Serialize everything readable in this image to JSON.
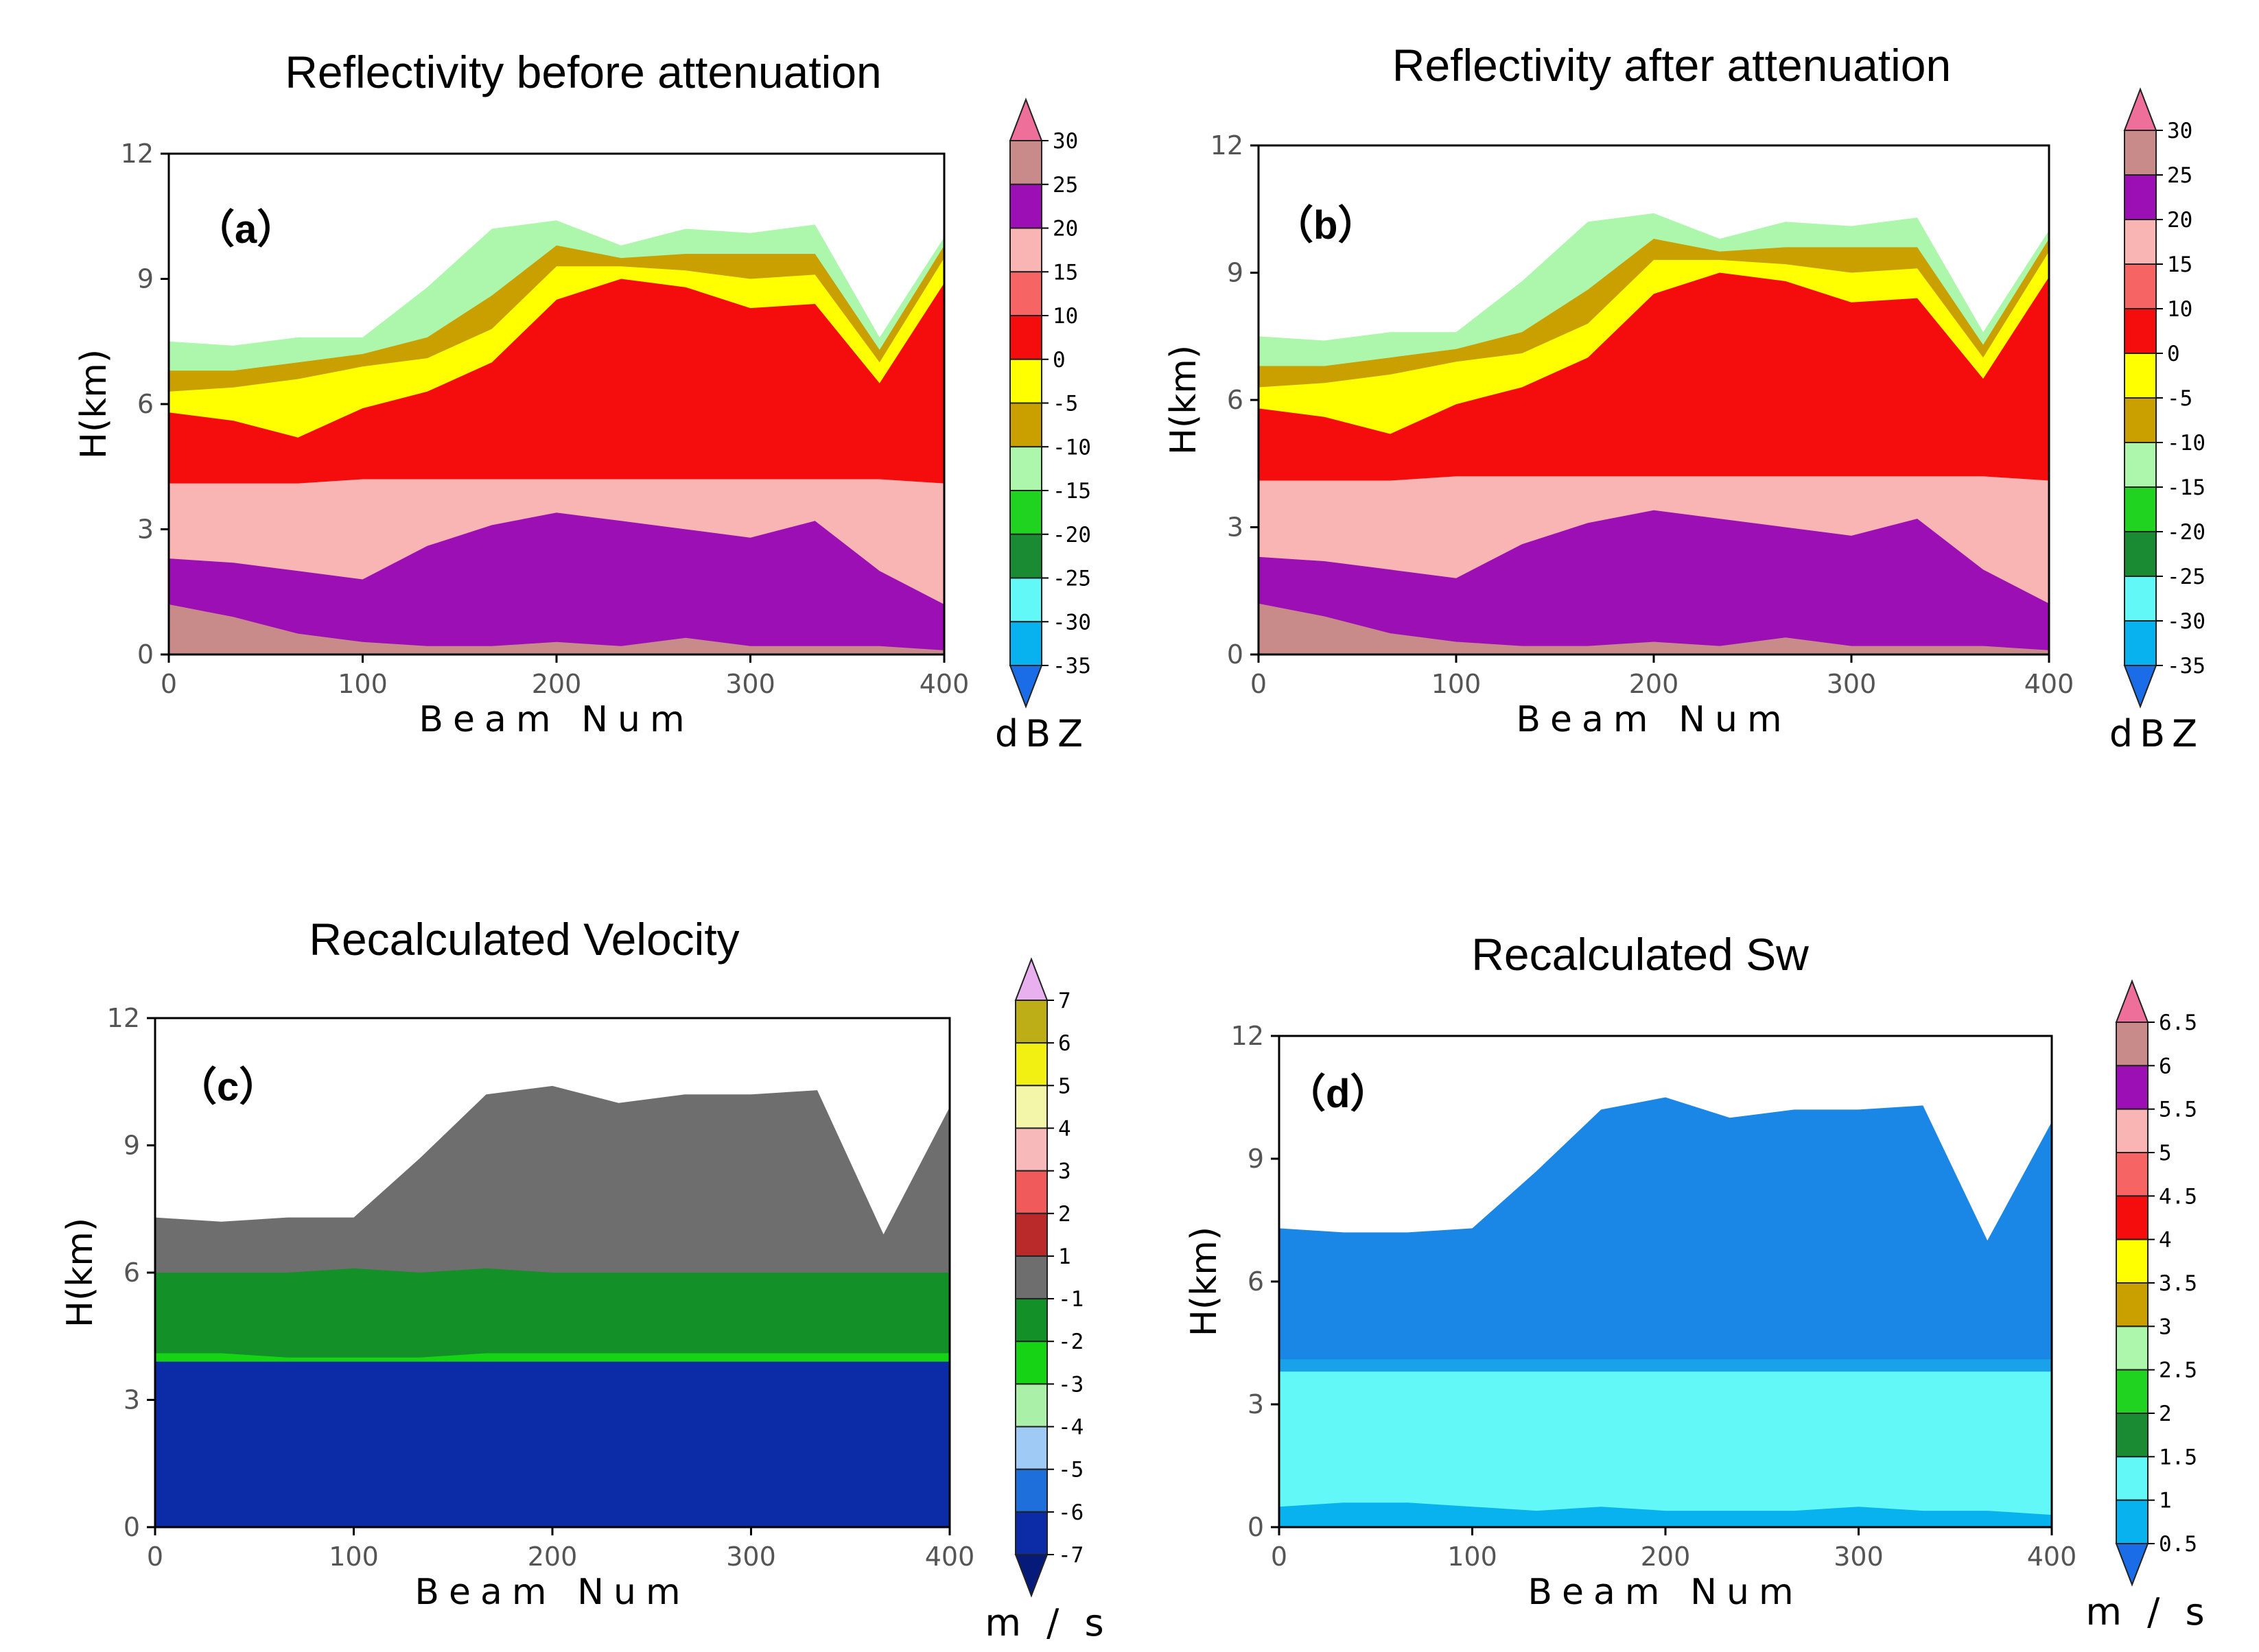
{
  "chart_data": [
    {
      "id": "a",
      "type": "heatmap",
      "title": "Reflectivity before attenuation",
      "label": "（a）",
      "xlabel": "Beam Num",
      "ylabel": "H(km)",
      "xlim": [
        0,
        400
      ],
      "ylim": [
        0,
        12
      ],
      "xticks": [
        "0",
        "100",
        "200",
        "300",
        "400"
      ],
      "yticks": [
        "0",
        "3",
        "6",
        "9",
        "12"
      ],
      "colorbar": {
        "unit": "dBZ",
        "labels": [
          "30",
          "25",
          "20",
          "15",
          "10",
          "0",
          "-5",
          "-10",
          "-15",
          "-20",
          "-25",
          "-30",
          "-35"
        ],
        "colors": [
          "#ee6f9a",
          "#c98a8a",
          "#9b0fb4",
          "#f9b4b4",
          "#f66464",
          "#f50c0c",
          "#ffff00",
          "#c9a000",
          "#adf7ad",
          "#21d321",
          "#1a8b32",
          "#63f8f8",
          "#08b2ef",
          "#1a6de6"
        ]
      },
      "layers": [
        {
          "top": [
            1.2,
            0.9,
            0.5,
            0.3,
            0.2,
            0.2,
            0.3,
            0.2,
            0.4,
            0.2,
            0.2,
            0.2,
            0.1
          ],
          "color": "#c98a8a"
        },
        {
          "top": [
            2.3,
            2.2,
            2.0,
            1.8,
            2.6,
            3.1,
            3.4,
            3.2,
            3.0,
            2.8,
            3.2,
            2.0,
            1.2
          ],
          "color": "#9b0fb4"
        },
        {
          "top": [
            4.1,
            4.1,
            4.1,
            4.2,
            4.2,
            4.2,
            4.2,
            4.2,
            4.2,
            4.2,
            4.2,
            4.2,
            4.1
          ],
          "color": "#f9b4b4"
        },
        {
          "top": [
            5.8,
            5.6,
            5.2,
            5.9,
            6.3,
            7.0,
            8.5,
            9.0,
            8.8,
            8.3,
            8.4,
            6.5,
            8.9
          ],
          "color": "#f50c0c"
        },
        {
          "top": [
            6.3,
            6.4,
            6.6,
            6.9,
            7.1,
            7.8,
            9.3,
            9.3,
            9.2,
            9.0,
            9.1,
            7.0,
            9.5
          ],
          "color": "#ffff00"
        },
        {
          "top": [
            6.8,
            6.8,
            7.0,
            7.2,
            7.6,
            8.6,
            9.8,
            9.5,
            9.6,
            9.6,
            9.6,
            7.3,
            9.8
          ],
          "color": "#c9a000"
        },
        {
          "top": [
            7.5,
            7.4,
            7.6,
            7.6,
            8.8,
            10.2,
            10.4,
            9.8,
            10.2,
            10.1,
            10.3,
            7.6,
            10.0
          ],
          "color": "#adf7ad"
        }
      ]
    },
    {
      "id": "b",
      "type": "heatmap",
      "title": "Reflectivity after attenuation",
      "label": "（b）",
      "xlabel": "Beam Num",
      "ylabel": "H(km)",
      "xlim": [
        0,
        400
      ],
      "ylim": [
        0,
        12
      ],
      "xticks": [
        "0",
        "100",
        "200",
        "300",
        "400"
      ],
      "yticks": [
        "0",
        "3",
        "6",
        "9",
        "12"
      ],
      "colorbar": {
        "unit": "dBZ",
        "labels": [
          "30",
          "25",
          "20",
          "15",
          "10",
          "0",
          "-5",
          "-10",
          "-15",
          "-20",
          "-25",
          "-30",
          "-35"
        ],
        "colors": [
          "#ee6f9a",
          "#c98a8a",
          "#9b0fb4",
          "#f9b4b4",
          "#f66464",
          "#f50c0c",
          "#ffff00",
          "#c9a000",
          "#adf7ad",
          "#21d321",
          "#1a8b32",
          "#63f8f8",
          "#08b2ef",
          "#1a6de6"
        ]
      },
      "layers": [
        {
          "top": [
            1.2,
            0.9,
            0.5,
            0.3,
            0.2,
            0.2,
            0.3,
            0.2,
            0.4,
            0.2,
            0.2,
            0.2,
            0.1
          ],
          "color": "#c98a8a"
        },
        {
          "top": [
            2.3,
            2.2,
            2.0,
            1.8,
            2.6,
            3.1,
            3.4,
            3.2,
            3.0,
            2.8,
            3.2,
            2.0,
            1.2
          ],
          "color": "#9b0fb4"
        },
        {
          "top": [
            4.1,
            4.1,
            4.1,
            4.2,
            4.2,
            4.2,
            4.2,
            4.2,
            4.2,
            4.2,
            4.2,
            4.2,
            4.1
          ],
          "color": "#f9b4b4"
        },
        {
          "top": [
            5.8,
            5.6,
            5.2,
            5.9,
            6.3,
            7.0,
            8.5,
            9.0,
            8.8,
            8.3,
            8.4,
            6.5,
            8.9
          ],
          "color": "#f50c0c"
        },
        {
          "top": [
            6.3,
            6.4,
            6.6,
            6.9,
            7.1,
            7.8,
            9.3,
            9.3,
            9.2,
            9.0,
            9.1,
            7.0,
            9.5
          ],
          "color": "#ffff00"
        },
        {
          "top": [
            6.8,
            6.8,
            7.0,
            7.2,
            7.6,
            8.6,
            9.8,
            9.5,
            9.6,
            9.6,
            9.6,
            7.3,
            9.8
          ],
          "color": "#c9a000"
        },
        {
          "top": [
            7.5,
            7.4,
            7.6,
            7.6,
            8.8,
            10.2,
            10.4,
            9.8,
            10.2,
            10.1,
            10.3,
            7.6,
            10.0
          ],
          "color": "#adf7ad"
        }
      ]
    },
    {
      "id": "c",
      "type": "heatmap",
      "title": "Recalculated Velocity",
      "label": "（c）",
      "xlabel": "Beam Num",
      "ylabel": "H(km)",
      "xlim": [
        0,
        400
      ],
      "ylim": [
        0,
        12
      ],
      "xticks": [
        "0",
        "100",
        "200",
        "300",
        "400"
      ],
      "yticks": [
        "0",
        "3",
        "6",
        "9",
        "12"
      ],
      "colorbar": {
        "unit": "m / s",
        "labels": [
          "7",
          "6",
          "5",
          "4",
          "3",
          "2",
          "1",
          "-1",
          "-2",
          "-3",
          "-4",
          "-5",
          "-6",
          "-7"
        ],
        "colors": [
          "#e8b0ee",
          "#bdae18",
          "#f2ef12",
          "#f3f6a8",
          "#f7b9b9",
          "#f05a5a",
          "#bb2a2a",
          "#6e6e6e",
          "#149028",
          "#16d316",
          "#aaf0a8",
          "#9ecaf5",
          "#1e6fdc",
          "#0b2ca6",
          "#061a7a"
        ]
      },
      "layers": [
        {
          "top": [
            3.9,
            3.9,
            3.9,
            3.9,
            3.9,
            3.9,
            3.9,
            3.9,
            3.9,
            3.9,
            3.9,
            3.9,
            3.9
          ],
          "color": "#0b2ca6"
        },
        {
          "top": [
            4.1,
            4.1,
            4.0,
            4.0,
            4.0,
            4.1,
            4.1,
            4.1,
            4.1,
            4.1,
            4.1,
            4.1,
            4.1
          ],
          "color": "#16d316"
        },
        {
          "top": [
            6.0,
            6.0,
            6.0,
            6.1,
            6.0,
            6.1,
            6.0,
            6.0,
            6.0,
            6.0,
            6.0,
            6.0,
            6.0
          ],
          "color": "#149028"
        },
        {
          "top": [
            7.3,
            7.2,
            7.3,
            7.3,
            8.7,
            10.2,
            10.4,
            10.0,
            10.2,
            10.2,
            10.3,
            6.9,
            9.9
          ],
          "color": "#6e6e6e"
        }
      ]
    },
    {
      "id": "d",
      "type": "heatmap",
      "title": "Recalculated Sw",
      "label": "（d）",
      "xlabel": "Beam Num",
      "ylabel": "H(km)",
      "xlim": [
        0,
        400
      ],
      "ylim": [
        0,
        12
      ],
      "xticks": [
        "0",
        "100",
        "200",
        "300",
        "400"
      ],
      "yticks": [
        "0",
        "3",
        "6",
        "9",
        "12"
      ],
      "colorbar": {
        "unit": "m / s",
        "labels": [
          "6.5",
          "6",
          "5.5",
          "5",
          "4.5",
          "4",
          "3.5",
          "3",
          "2.5",
          "2",
          "1.5",
          "1",
          "0.5"
        ],
        "colors": [
          "#ee6f9a",
          "#c98a8a",
          "#9b0fb4",
          "#f9b4b4",
          "#f66464",
          "#f50c0c",
          "#ffff00",
          "#c9a000",
          "#adf7ad",
          "#21d321",
          "#1a8b32",
          "#63f8f8",
          "#08b2ef",
          "#1a6de6"
        ]
      },
      "layers": [
        {
          "top": [
            0.5,
            0.6,
            0.6,
            0.5,
            0.4,
            0.5,
            0.4,
            0.4,
            0.4,
            0.5,
            0.4,
            0.4,
            0.3
          ],
          "color": "#08b2ef"
        },
        {
          "top": [
            3.8,
            3.8,
            3.8,
            3.8,
            3.8,
            3.8,
            3.8,
            3.8,
            3.8,
            3.8,
            3.8,
            3.8,
            3.8
          ],
          "color": "#63f8f8"
        },
        {
          "top": [
            4.1,
            4.1,
            4.1,
            4.1,
            4.1,
            4.1,
            4.1,
            4.1,
            4.1,
            4.1,
            4.1,
            4.1,
            4.1
          ],
          "color": "#19a2ea"
        },
        {
          "top": [
            7.3,
            7.2,
            7.2,
            7.3,
            8.7,
            10.2,
            10.5,
            10.0,
            10.2,
            10.2,
            10.3,
            7.0,
            9.9
          ],
          "color": "#1a86e6"
        }
      ]
    }
  ]
}
